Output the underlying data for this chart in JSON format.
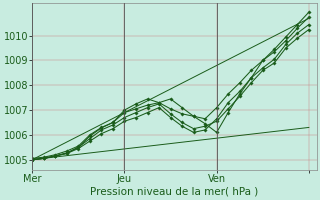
{
  "xlabel": "Pression niveau de la mer( hPa )",
  "bg_color": "#c8ece0",
  "grid_color": "#cc8888",
  "line_color": "#1a5c1a",
  "vline_color": "#555555",
  "ylim": [
    1004.6,
    1011.3
  ],
  "xlim": [
    0,
    74
  ],
  "yticks": [
    1005,
    1006,
    1007,
    1008,
    1009,
    1010
  ],
  "xtick_pos": [
    0,
    24,
    48,
    72
  ],
  "xticklabels": [
    "Mer",
    "Jeu",
    "Ven",
    ""
  ],
  "series": [
    {
      "x": [
        0,
        3,
        6,
        9,
        12,
        15,
        18,
        21,
        24,
        27,
        30,
        33,
        36,
        39,
        42,
        45,
        48,
        51,
        54,
        57,
        60,
        63,
        66,
        69,
        72
      ],
      "y": [
        1005.05,
        1005.1,
        1005.2,
        1005.35,
        1005.55,
        1006.0,
        1006.3,
        1006.5,
        1006.9,
        1007.05,
        1007.2,
        1007.3,
        1007.05,
        1006.85,
        1006.75,
        1006.65,
        1007.1,
        1007.65,
        1008.1,
        1008.6,
        1009.0,
        1009.45,
        1009.95,
        1010.45,
        1010.95
      ]
    },
    {
      "x": [
        0,
        3,
        6,
        9,
        12,
        15,
        18,
        21,
        24,
        27,
        30,
        33,
        36,
        39,
        42,
        45,
        48,
        51,
        54,
        57,
        60,
        63,
        66,
        69,
        72
      ],
      "y": [
        1005.0,
        1005.05,
        1005.15,
        1005.25,
        1005.45,
        1005.75,
        1006.05,
        1006.25,
        1006.55,
        1006.7,
        1006.9,
        1007.1,
        1006.7,
        1006.35,
        1006.1,
        1006.2,
        1006.65,
        1007.3,
        1007.75,
        1008.3,
        1008.7,
        1009.05,
        1009.65,
        1010.1,
        1010.45
      ]
    },
    {
      "x": [
        0,
        3,
        6,
        9,
        12,
        15,
        18,
        21,
        24,
        27,
        30,
        33,
        36,
        39,
        42,
        45,
        48,
        51,
        54,
        57,
        60,
        63,
        66,
        69,
        72
      ],
      "y": [
        1005.0,
        1005.05,
        1005.15,
        1005.28,
        1005.5,
        1005.95,
        1006.28,
        1006.5,
        1007.0,
        1007.25,
        1007.45,
        1007.3,
        1007.45,
        1007.1,
        1006.75,
        1006.45,
        1006.1,
        1006.9,
        1007.65,
        1008.3,
        1009.0,
        1009.35,
        1009.8,
        1010.3,
        1010.75
      ]
    },
    {
      "x": [
        0,
        3,
        6,
        9,
        12,
        15,
        18,
        21,
        24,
        27,
        30,
        33,
        36,
        39,
        42,
        45,
        48,
        51,
        54,
        57,
        60,
        63,
        66,
        69,
        72
      ],
      "y": [
        1005.0,
        1005.05,
        1005.15,
        1005.25,
        1005.5,
        1005.85,
        1006.2,
        1006.4,
        1006.7,
        1006.9,
        1007.1,
        1007.25,
        1006.85,
        1006.5,
        1006.25,
        1006.35,
        1006.55,
        1007.05,
        1007.55,
        1008.1,
        1008.6,
        1008.9,
        1009.5,
        1009.9,
        1010.25
      ]
    },
    {
      "x": [
        0,
        72
      ],
      "y": [
        1005.0,
        1010.7
      ]
    },
    {
      "x": [
        0,
        72
      ],
      "y": [
        1005.0,
        1006.3
      ]
    }
  ]
}
